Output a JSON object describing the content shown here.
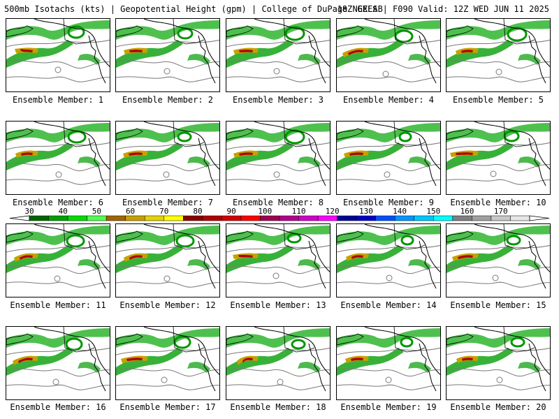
{
  "header": {
    "left": "500mb Isotachs (kts) | Geopotential Height (gpm) | College of DuPage NEXLAB",
    "right": "18Z GEFS | F090 Valid: 12Z WED JUN 11 2025"
  },
  "members": [
    "Ensemble Member: 1",
    "Ensemble Member: 2",
    "Ensemble Member: 3",
    "Ensemble Member: 4",
    "Ensemble Member: 5",
    "Ensemble Member: 6",
    "Ensemble Member: 7",
    "Ensemble Member: 8",
    "Ensemble Member: 9",
    "Ensemble Member: 10",
    "Ensemble Member: 11",
    "Ensemble Member: 12",
    "Ensemble Member: 13",
    "Ensemble Member: 14",
    "Ensemble Member: 15",
    "Ensemble Member: 16",
    "Ensemble Member: 17",
    "Ensemble Member: 18",
    "Ensemble Member: 19",
    "Ensemble Member: 20"
  ],
  "colorbar": {
    "labels": [
      "30",
      "40",
      "50",
      "60",
      "70",
      "80",
      "90",
      "100",
      "110",
      "120",
      "130",
      "140",
      "150",
      "160",
      "170"
    ],
    "colors": [
      "#006400",
      "#00a000",
      "#00dc00",
      "#50ff50",
      "#a06400",
      "#c8a000",
      "#e6d200",
      "#ffff00",
      "#8b0000",
      "#b00000",
      "#d20000",
      "#ff0000",
      "#a00050",
      "#b4008c",
      "#d200c8",
      "#ff00ff",
      "#000096",
      "#0000c8",
      "#0050ff",
      "#0096ff",
      "#00c8ff",
      "#00ffff",
      "#808080",
      "#a0a0a0",
      "#c8c8c8",
      "#e6e6e6"
    ]
  }
}
